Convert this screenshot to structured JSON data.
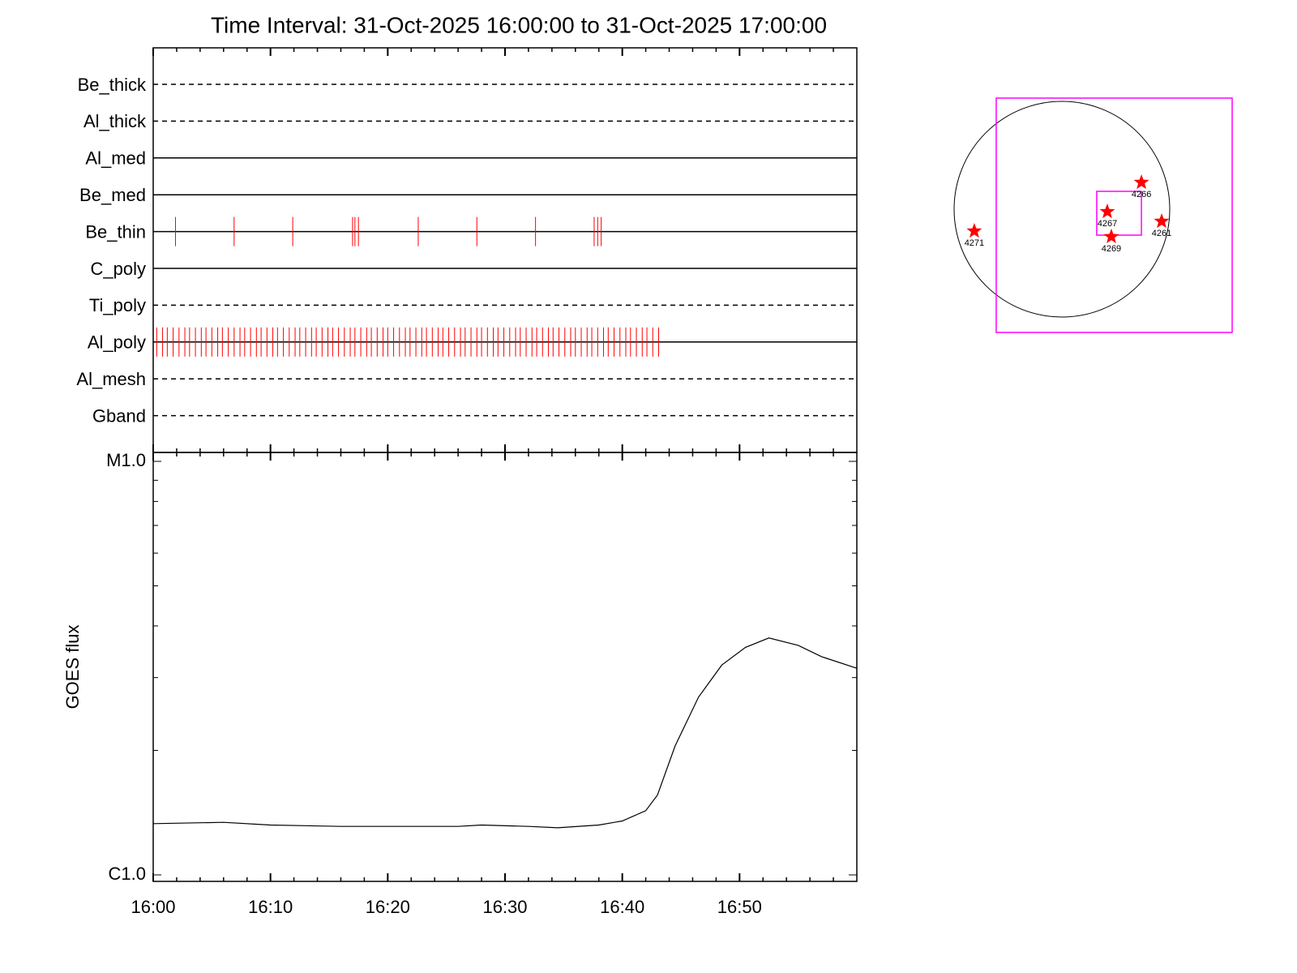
{
  "title": "Time Interval: 31-Oct-2025 16:00:00 to 31-Oct-2025 17:00:00",
  "chart_data": [
    {
      "type": "timeline",
      "xlim": [
        0,
        60
      ],
      "color": "#ff0000",
      "rows": [
        {
          "name": "Be_thick",
          "style": "dashed",
          "events": []
        },
        {
          "name": "Al_thick",
          "style": "dashed",
          "events": []
        },
        {
          "name": "Al_med",
          "style": "solid",
          "events": []
        },
        {
          "name": "Be_med",
          "style": "solid",
          "events": []
        },
        {
          "name": "Be_thin",
          "style": "solid",
          "events": [
            1.9,
            6.9,
            11.9,
            17.0,
            17.2,
            17.5,
            22.6,
            27.6,
            32.6,
            37.6,
            37.9,
            38.2
          ]
        },
        {
          "name": "C_poly",
          "style": "solid",
          "events": []
        },
        {
          "name": "Ti_poly",
          "style": "dashed",
          "events": []
        },
        {
          "name": "Al_poly",
          "style": "solid",
          "events": [
            0.3,
            0.8,
            1.2,
            1.7,
            2.2,
            2.7,
            3.1,
            3.6,
            4.1,
            4.5,
            5.0,
            5.5,
            5.9,
            6.4,
            6.9,
            7.4,
            7.8,
            8.3,
            8.8,
            9.2,
            9.7,
            10.2,
            10.6,
            11.1,
            11.6,
            12.1,
            12.5,
            13.0,
            13.5,
            13.9,
            14.4,
            14.9,
            15.3,
            15.8,
            16.3,
            16.8,
            17.2,
            17.7,
            18.2,
            18.6,
            19.1,
            19.6,
            20.0,
            20.5,
            21.0,
            21.5,
            21.9,
            22.4,
            22.9,
            23.3,
            23.8,
            24.3,
            24.7,
            25.2,
            25.7,
            26.2,
            26.6,
            27.1,
            27.6,
            28.0,
            28.5,
            29.0,
            29.4,
            29.9,
            30.4,
            30.9,
            31.3,
            31.8,
            32.3,
            32.7,
            33.2,
            33.7,
            34.1,
            34.6,
            35.1,
            35.6,
            36.0,
            36.5,
            37.0,
            37.4,
            37.9,
            38.4,
            38.8,
            39.3,
            39.8,
            40.3,
            40.7,
            41.2,
            41.7,
            42.1,
            42.6,
            43.1
          ]
        },
        {
          "name": "Al_mesh",
          "style": "dashed",
          "events": []
        },
        {
          "name": "Gband",
          "style": "dashed",
          "events": []
        }
      ],
      "xticks": [
        0,
        10,
        20,
        30,
        40,
        50
      ],
      "xminorticks": [
        2,
        4,
        6,
        8,
        12,
        14,
        16,
        18,
        22,
        24,
        26,
        28,
        32,
        34,
        36,
        38,
        42,
        44,
        46,
        48,
        52,
        54,
        56,
        58
      ]
    },
    {
      "type": "line",
      "ylabel": "GOES flux",
      "log": true,
      "color": "#000000",
      "x": [
        0,
        6,
        10,
        16,
        20,
        26,
        28,
        32,
        34.5,
        38,
        40,
        42,
        43,
        44.5,
        46.5,
        48.5,
        50.5,
        52.5,
        55,
        57,
        60
      ],
      "values": [
        1.33e-06,
        1.34e-06,
        1.32e-06,
        1.31e-06,
        1.31e-06,
        1.31e-06,
        1.32e-06,
        1.31e-06,
        1.3e-06,
        1.32e-06,
        1.35e-06,
        1.43e-06,
        1.56e-06,
        2.05e-06,
        2.69e-06,
        3.22e-06,
        3.55e-06,
        3.74e-06,
        3.59e-06,
        3.37e-06,
        3.16e-06
      ],
      "xlim": [
        0,
        60
      ],
      "ylim": [
        1e-06,
        1e-05
      ],
      "yticks": [
        {
          "value": 1e-06,
          "label": "C1.0"
        },
        {
          "value": 1e-05,
          "label": "M1.0"
        }
      ],
      "yminorticks": [
        2e-06,
        3e-06,
        4e-06,
        5e-06,
        6e-06,
        7e-06,
        8e-06,
        9e-06
      ],
      "xticks": [
        {
          "value": 0,
          "label": "16:00"
        },
        {
          "value": 10,
          "label": "16:10"
        },
        {
          "value": 20,
          "label": "16:20"
        },
        {
          "value": 30,
          "label": "16:30"
        },
        {
          "value": 40,
          "label": "16:40"
        },
        {
          "value": 50,
          "label": "16:50"
        }
      ],
      "xminorticks": [
        2,
        4,
        6,
        8,
        12,
        14,
        16,
        18,
        22,
        24,
        26,
        28,
        32,
        34,
        36,
        38,
        42,
        44,
        46,
        48,
        52,
        54,
        56,
        58
      ]
    },
    {
      "type": "sunmap",
      "radius": 960,
      "star_color": "#ff0000",
      "box_color": "#ff00ff",
      "boxes": [
        {
          "x": [
            -585,
            1516
          ],
          "y": [
            -1097,
            989
          ]
        },
        {
          "x": [
            310,
            708
          ],
          "y": [
            -231,
            159
          ]
        }
      ],
      "regions": [
        {
          "label": "4271",
          "x": -780,
          "y": -195
        },
        {
          "label": "4267",
          "x": 404,
          "y": -22
        },
        {
          "label": "4269",
          "x": 440,
          "y": -245
        },
        {
          "label": "4266",
          "x": 708,
          "y": 238
        },
        {
          "label": "4261",
          "x": 888,
          "y": -108
        }
      ]
    }
  ]
}
